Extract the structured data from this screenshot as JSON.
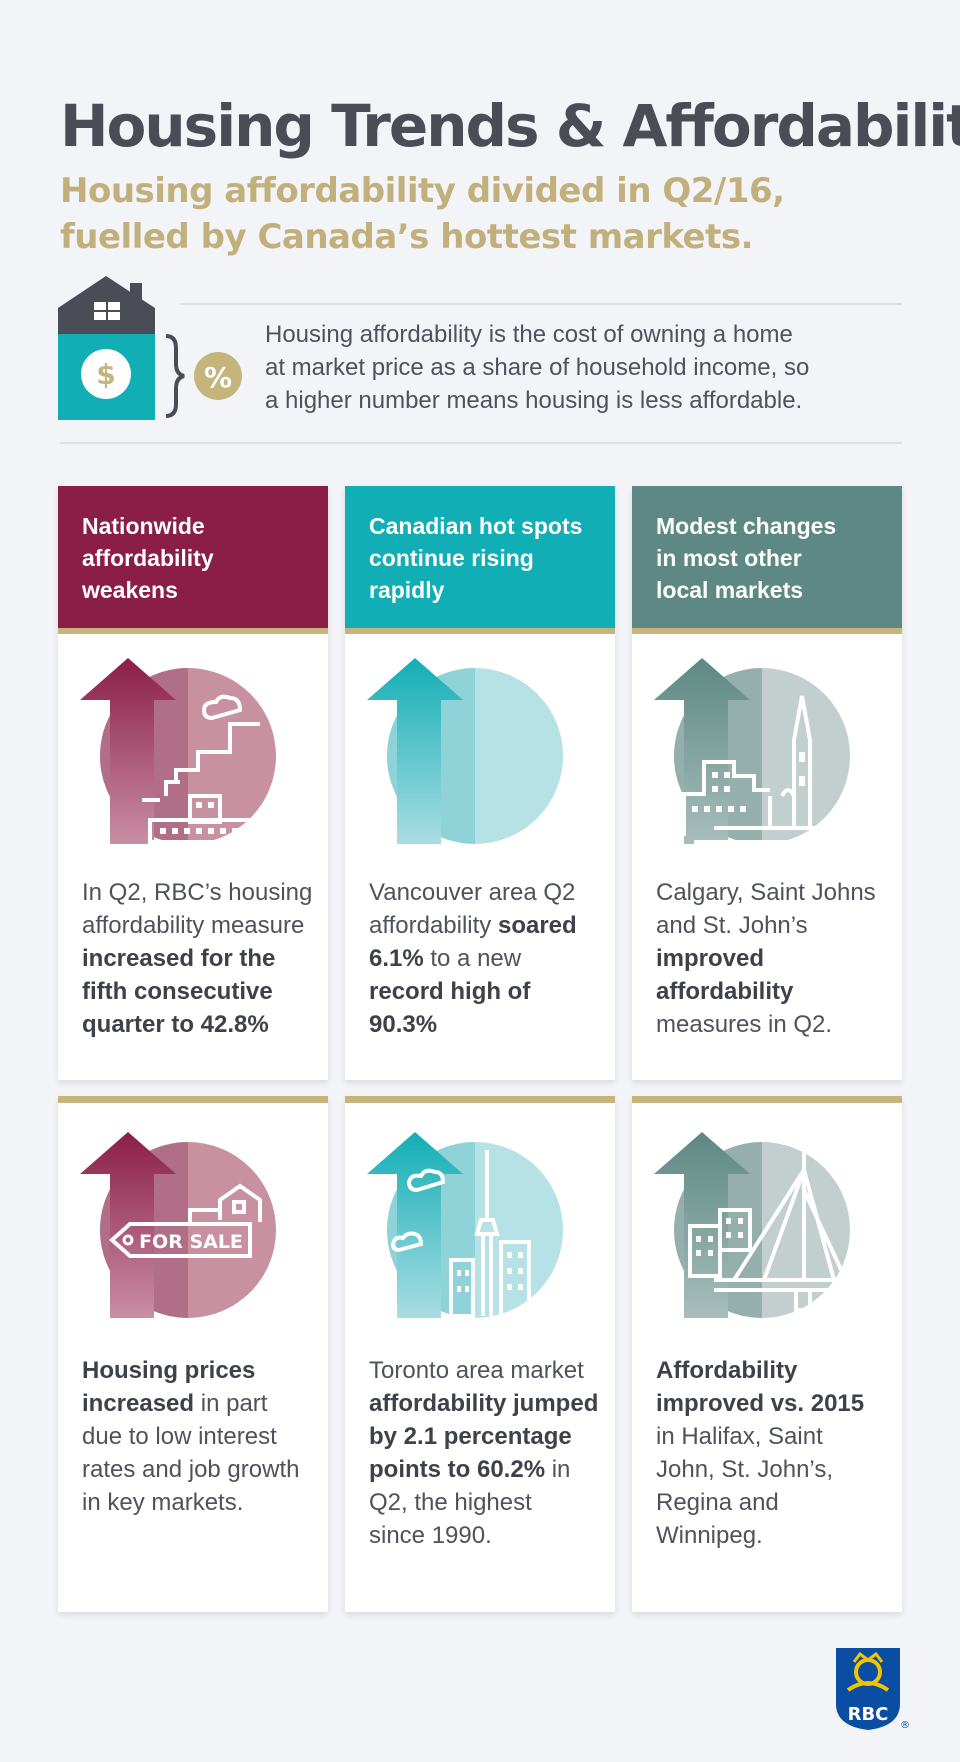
{
  "header": {
    "title": "Housing Trends & Affordability",
    "subtitle_line1": "Housing affordability divided in Q2/16,",
    "subtitle_line2": "fuelled by Canada’s hottest markets."
  },
  "intro": {
    "percent_symbol": "%",
    "dollar_symbol": "$",
    "line1": "Housing affordability is the cost of owning a home",
    "line2": "at market price as a share of household income, so",
    "line3": "a higher number means housing is less affordable."
  },
  "columns": [
    {
      "heading": [
        "Nationwide",
        "affordability",
        "weakens"
      ],
      "color": "#8b1e46"
    },
    {
      "heading": [
        "Canadian hot spots",
        "continue rising",
        "rapidly"
      ],
      "color": "#12aeb6"
    },
    {
      "heading": [
        "Modest changes",
        "in most other",
        "local markets"
      ],
      "color": "#5e8883"
    }
  ],
  "cards": {
    "c1": {
      "l1": "In Q2, RBC’s housing",
      "l2": "affordability measure",
      "l3": "increased for the",
      "l4": "fifth consecutive",
      "l5": "quarter to 42.8%"
    },
    "c2": {
      "l1": "Vancouver area Q2",
      "l2a": "affordability ",
      "l2b": "soared",
      "l3a": "6.1%",
      "l3b": " to a new",
      "l4": "record high of",
      "l5": "90.3%"
    },
    "c3": {
      "l1": "Calgary, Saint Johns",
      "l2": "and St. John’s",
      "l3": "improved",
      "l4": "affordability",
      "l5": "measures in Q2."
    },
    "c4": {
      "l1": "Housing prices",
      "l2a": "increased",
      "l2b": " in part",
      "l3": "due to low interest",
      "l4": "rates and job growth",
      "l5": "in key markets.",
      "sign": "FOR SALE"
    },
    "c5": {
      "l1": "Toronto area market",
      "l2": "affordability jumped",
      "l3": "by 2.1 percentage",
      "l4a": "points to 60.2%",
      "l4b": " in",
      "l5": "Q2, the highest",
      "l6": "since 1990."
    },
    "c6": {
      "l1": "Affordability",
      "l2": "improved vs. 2015",
      "l3": "in Halifax, Saint",
      "l4": "John, St. John’s,",
      "l5": "Regina and",
      "l6": "Winnipeg."
    }
  },
  "logo": {
    "text": "RBC",
    "mark": "®"
  },
  "colors": {
    "title": "#4a4d55",
    "subtitle": "#c2b07c",
    "gold": "#c5b47c",
    "maroon": "#8b1e46",
    "teal": "#12aeb6",
    "slate": "#5e8883"
  }
}
